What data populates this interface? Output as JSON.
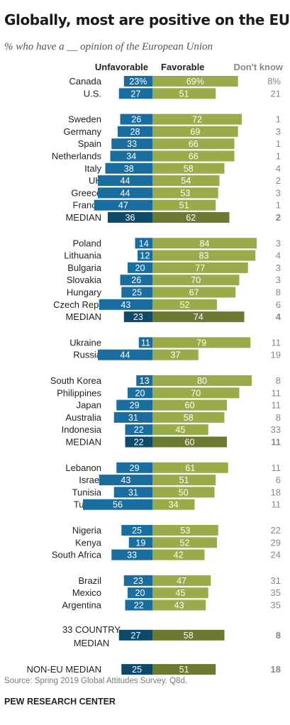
{
  "title": "Globally, most are positive on the EU",
  "subtitle": "% who have a __ opinion of the European Union",
  "source": "Source: Spring 2019 Global Attitudes Survey. Q8d.",
  "organization": "PEW RESEARCH CENTER",
  "colors": {
    "unfavorable": "#1a6e9f",
    "unfavorable_median": "#0d4a6a",
    "favorable": "#9aab4a",
    "favorable_median": "#6a7a30",
    "dontknow": "#888888"
  },
  "chart_data": {
    "type": "bar",
    "orientation": "horizontal-diverging",
    "legend": {
      "unfavorable": "Unfavorable",
      "favorable": "Favorable",
      "dontknow": "Don't know"
    },
    "groups": [
      {
        "rows": [
          {
            "label": "Canada",
            "unfav": 23,
            "unfav_label": "23%",
            "fav": 69,
            "fav_label": "69%",
            "dk": "8%"
          },
          {
            "label": "U.S.",
            "unfav": 27,
            "unfav_label": "27",
            "fav": 51,
            "fav_label": "51",
            "dk": "21"
          }
        ]
      },
      {
        "rows": [
          {
            "label": "Sweden",
            "unfav": 26,
            "unfav_label": "26",
            "fav": 72,
            "fav_label": "72",
            "dk": "1"
          },
          {
            "label": "Germany",
            "unfav": 28,
            "unfav_label": "28",
            "fav": 69,
            "fav_label": "69",
            "dk": "3"
          },
          {
            "label": "Spain",
            "unfav": 33,
            "unfav_label": "33",
            "fav": 66,
            "fav_label": "66",
            "dk": "1"
          },
          {
            "label": "Netherlands",
            "unfav": 34,
            "unfav_label": "34",
            "fav": 66,
            "fav_label": "66",
            "dk": "1"
          },
          {
            "label": "Italy",
            "unfav": 38,
            "unfav_label": "38",
            "fav": 58,
            "fav_label": "58",
            "dk": "4"
          },
          {
            "label": "UK",
            "unfav": 44,
            "unfav_label": "44",
            "fav": 54,
            "fav_label": "54",
            "dk": "2"
          },
          {
            "label": "Greece",
            "unfav": 44,
            "unfav_label": "44",
            "fav": 53,
            "fav_label": "53",
            "dk": "3"
          },
          {
            "label": "France",
            "unfav": 47,
            "unfav_label": "47",
            "fav": 51,
            "fav_label": "51",
            "dk": "1"
          },
          {
            "label": "MEDIAN",
            "unfav": 36,
            "unfav_label": "36",
            "fav": 62,
            "fav_label": "62",
            "dk": "2",
            "median": true
          }
        ]
      },
      {
        "rows": [
          {
            "label": "Poland",
            "unfav": 14,
            "unfav_label": "14",
            "fav": 84,
            "fav_label": "84",
            "dk": "3"
          },
          {
            "label": "Lithuania",
            "unfav": 12,
            "unfav_label": "12",
            "fav": 83,
            "fav_label": "83",
            "dk": "4"
          },
          {
            "label": "Bulgaria",
            "unfav": 20,
            "unfav_label": "20",
            "fav": 77,
            "fav_label": "77",
            "dk": "3"
          },
          {
            "label": "Slovakia",
            "unfav": 26,
            "unfav_label": "26",
            "fav": 70,
            "fav_label": "70",
            "dk": "3"
          },
          {
            "label": "Hungary",
            "unfav": 25,
            "unfav_label": "25",
            "fav": 67,
            "fav_label": "67",
            "dk": "8"
          },
          {
            "label": "Czech Rep.",
            "unfav": 43,
            "unfav_label": "43",
            "fav": 52,
            "fav_label": "52",
            "dk": "6"
          },
          {
            "label": "MEDIAN",
            "unfav": 23,
            "unfav_label": "23",
            "fav": 74,
            "fav_label": "74",
            "dk": "4",
            "median": true
          }
        ]
      },
      {
        "rows": [
          {
            "label": "Ukraine",
            "unfav": 11,
            "unfav_label": "11",
            "fav": 79,
            "fav_label": "79",
            "dk": "11"
          },
          {
            "label": "Russia",
            "unfav": 44,
            "unfav_label": "44",
            "fav": 37,
            "fav_label": "37",
            "dk": "19"
          }
        ]
      },
      {
        "rows": [
          {
            "label": "South Korea",
            "unfav": 13,
            "unfav_label": "13",
            "fav": 80,
            "fav_label": "80",
            "dk": "8"
          },
          {
            "label": "Philippines",
            "unfav": 20,
            "unfav_label": "20",
            "fav": 70,
            "fav_label": "70",
            "dk": "11"
          },
          {
            "label": "Japan",
            "unfav": 29,
            "unfav_label": "29",
            "fav": 60,
            "fav_label": "60",
            "dk": "11"
          },
          {
            "label": "Australia",
            "unfav": 31,
            "unfav_label": "31",
            "fav": 58,
            "fav_label": "58",
            "dk": "8"
          },
          {
            "label": "Indonesia",
            "unfav": 22,
            "unfav_label": "22",
            "fav": 45,
            "fav_label": "45",
            "dk": "33"
          },
          {
            "label": "MEDIAN",
            "unfav": 22,
            "unfav_label": "22",
            "fav": 60,
            "fav_label": "60",
            "dk": "11",
            "median": true
          }
        ]
      },
      {
        "rows": [
          {
            "label": "Lebanon",
            "unfav": 29,
            "unfav_label": "29",
            "fav": 61,
            "fav_label": "61",
            "dk": "11"
          },
          {
            "label": "Israel",
            "unfav": 43,
            "unfav_label": "43",
            "fav": 51,
            "fav_label": "51",
            "dk": "6"
          },
          {
            "label": "Tunisia",
            "unfav": 31,
            "unfav_label": "31",
            "fav": 50,
            "fav_label": "50",
            "dk": "18"
          },
          {
            "label": "Turkey",
            "unfav": 56,
            "unfav_label": "56",
            "fav": 34,
            "fav_label": "34",
            "dk": "11"
          }
        ]
      },
      {
        "rows": [
          {
            "label": "Nigeria",
            "unfav": 25,
            "unfav_label": "25",
            "fav": 53,
            "fav_label": "53",
            "dk": "22"
          },
          {
            "label": "Kenya",
            "unfav": 19,
            "unfav_label": "19",
            "fav": 52,
            "fav_label": "52",
            "dk": "29"
          },
          {
            "label": "South Africa",
            "unfav": 33,
            "unfav_label": "33",
            "fav": 42,
            "fav_label": "42",
            "dk": "24"
          }
        ]
      },
      {
        "rows": [
          {
            "label": "Brazil",
            "unfav": 23,
            "unfav_label": "23",
            "fav": 47,
            "fav_label": "47",
            "dk": "31"
          },
          {
            "label": "Mexico",
            "unfav": 20,
            "unfav_label": "20",
            "fav": 45,
            "fav_label": "45",
            "dk": "35"
          },
          {
            "label": "Argentina",
            "unfav": 22,
            "unfav_label": "22",
            "fav": 43,
            "fav_label": "43",
            "dk": "35"
          }
        ]
      },
      {
        "rows": [
          {
            "label": "33 COUNTRY MEDIAN",
            "label_lines": [
              "33 COUNTRY",
              "MEDIAN"
            ],
            "unfav": 27,
            "unfav_label": "27",
            "fav": 58,
            "fav_label": "58",
            "dk": "8",
            "median": true
          }
        ]
      },
      {
        "rows": [
          {
            "label": "NON-EU MEDIAN",
            "unfav": 25,
            "unfav_label": "25",
            "fav": 51,
            "fav_label": "51",
            "dk": "18",
            "median": true
          }
        ]
      }
    ]
  }
}
